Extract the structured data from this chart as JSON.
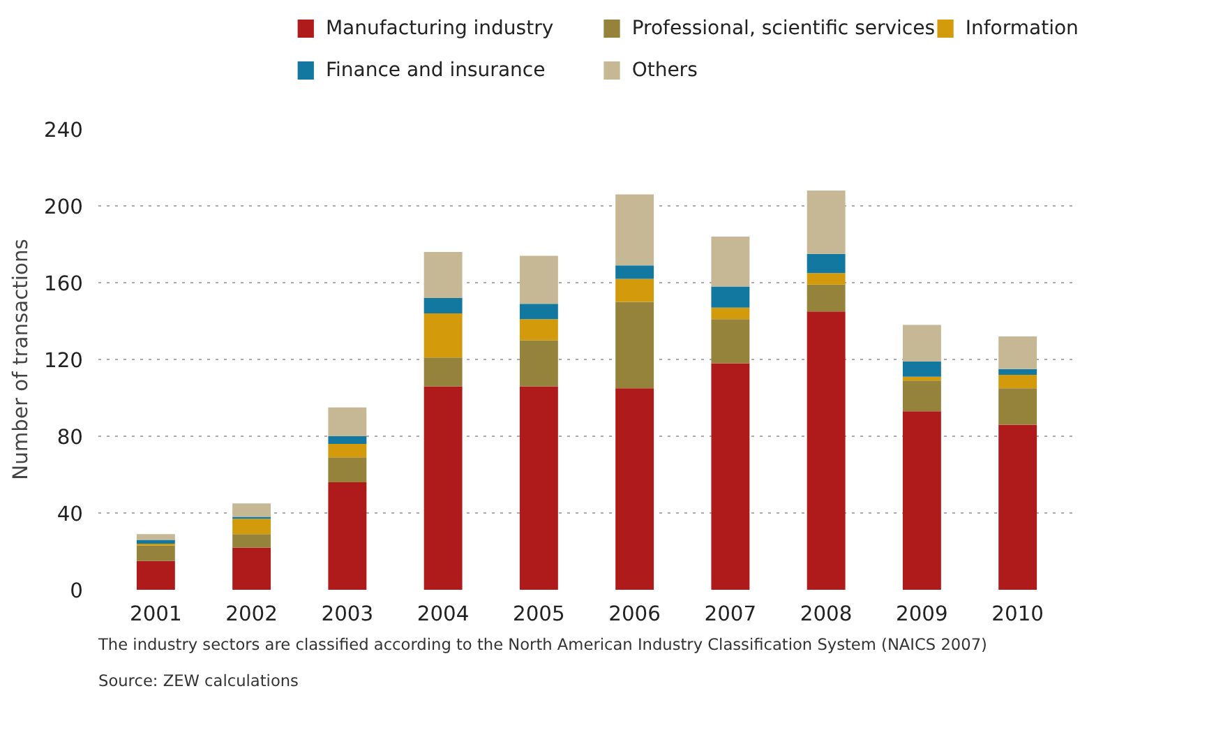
{
  "chart_data": {
    "type": "bar",
    "stacked": true,
    "ylabel": "Number of transactions",
    "categories": [
      "2001",
      "2002",
      "2003",
      "2004",
      "2005",
      "2006",
      "2007",
      "2008",
      "2009",
      "2010"
    ],
    "series": [
      {
        "name": "Manufacturing industry",
        "color": "#af1a1b",
        "values": [
          15,
          22,
          56,
          106,
          106,
          105,
          118,
          145,
          93,
          86
        ]
      },
      {
        "name": "Professional, scientific services",
        "color": "#95833c",
        "values": [
          8,
          7,
          13,
          15,
          24,
          45,
          23,
          14,
          16,
          19
        ]
      },
      {
        "name": "Information",
        "color": "#d39b0b",
        "values": [
          1,
          8,
          7,
          23,
          11,
          12,
          6,
          6,
          2,
          7
        ]
      },
      {
        "name": "Finance and insurance",
        "color": "#1378a0",
        "values": [
          2,
          1,
          4,
          8,
          8,
          7,
          11,
          10,
          8,
          3
        ]
      },
      {
        "name": "Others",
        "color": "#c6b895",
        "values": [
          3,
          7,
          15,
          24,
          25,
          37,
          26,
          33,
          19,
          17
        ]
      }
    ],
    "ylim": [
      0,
      240
    ],
    "yticks": [
      0,
      40,
      80,
      120,
      160,
      200,
      240
    ],
    "grid": "y",
    "legend": "top",
    "annotations": [
      "The industry sectors are classified according to the North American Industry Classification System (NAICS 2007)",
      "Source: ZEW calculations"
    ]
  }
}
